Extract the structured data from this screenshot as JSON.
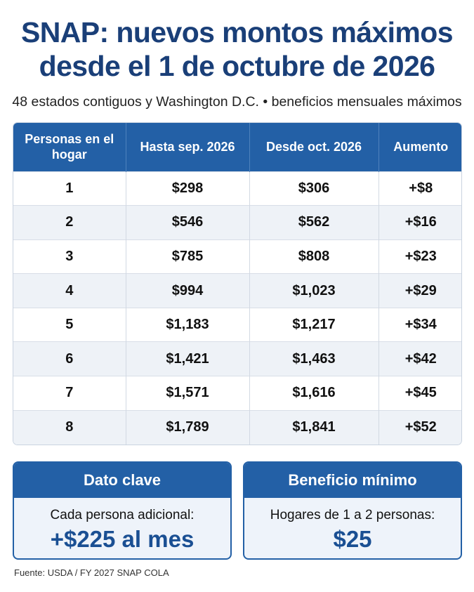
{
  "header": {
    "title_line1": "SNAP: nuevos montos máximos",
    "title_line2": "desde el 1 de octubre de 2026",
    "subtitle": "48 estados contiguos y Washington D.C. • beneficios mensuales máximos"
  },
  "table": {
    "columns": [
      "Personas en el hogar",
      "Hasta sep. 2026",
      "Desde oct. 2026",
      "Aumento"
    ],
    "rows": [
      [
        "1",
        "$298",
        "$306",
        "+$8"
      ],
      [
        "2",
        "$546",
        "$562",
        "+$16"
      ],
      [
        "3",
        "$785",
        "$808",
        "+$23"
      ],
      [
        "4",
        "$994",
        "$1,023",
        "+$29"
      ],
      [
        "5",
        "$1,183",
        "$1,217",
        "+$34"
      ],
      [
        "6",
        "$1,421",
        "$1,463",
        "+$42"
      ],
      [
        "7",
        "$1,571",
        "$1,616",
        "+$45"
      ],
      [
        "8",
        "$1,789",
        "$1,841",
        "+$52"
      ]
    ]
  },
  "cards": {
    "key_fact": {
      "title": "Dato clave",
      "text": "Cada persona adicional:",
      "value": "+$225 al mes"
    },
    "minimum": {
      "title": "Beneficio mínimo",
      "text": "Hogares de 1 a 2 personas:",
      "value": "$25"
    }
  },
  "source": "Fuente: USDA / FY 2027 SNAP COLA",
  "colors": {
    "title": "#1a3f78",
    "header_bg": "#2360a6",
    "stripe": "#eef2f7",
    "card_bg": "#eef3fa",
    "accent_value": "#1a4f93"
  }
}
